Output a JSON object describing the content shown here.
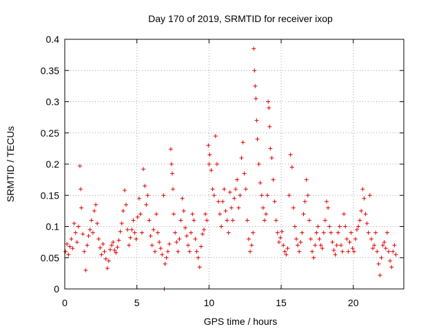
{
  "chart_data": {
    "type": "scatter",
    "title": "Day 170 of 2019, SRMTID for receiver ixop",
    "xlabel": "GPS time / hours",
    "ylabel": "SRMTID / TECUs",
    "xlim": [
      0,
      23.5
    ],
    "ylim": [
      0,
      0.4
    ],
    "grid": true,
    "marker": "+",
    "color": "#e00000",
    "x_ticks": [
      0,
      5,
      10,
      15,
      20
    ],
    "x_tick_labels": [
      "0",
      "5",
      "10",
      "15",
      "20"
    ],
    "y_ticks": [
      0,
      0.05,
      0.1,
      0.15,
      0.2,
      0.25,
      0.3,
      0.35,
      0.4
    ],
    "y_tick_labels": [
      "0",
      "0.05",
      "0.1",
      "0.15",
      "0.2",
      "0.25",
      "0.3",
      "0.35",
      "0.4"
    ],
    "series": [
      {
        "name": "SRMTID",
        "points": [
          [
            0.05,
            0.06
          ],
          [
            0.15,
            0.072
          ],
          [
            0.25,
            0.055
          ],
          [
            0.35,
            0.068
          ],
          [
            0.45,
            0.08
          ],
          [
            0.55,
            0.065
          ],
          [
            0.65,
            0.105
          ],
          [
            0.75,
            0.09
          ],
          [
            0.85,
            0.075
          ],
          [
            0.95,
            0.1
          ],
          [
            1.05,
            0.197
          ],
          [
            1.1,
            0.16
          ],
          [
            1.15,
            0.13
          ],
          [
            1.25,
            0.088
          ],
          [
            1.35,
            0.06
          ],
          [
            1.45,
            0.03
          ],
          [
            1.55,
            0.07
          ],
          [
            1.65,
            0.085
          ],
          [
            1.75,
            0.095
          ],
          [
            1.85,
            0.11
          ],
          [
            1.95,
            0.09
          ],
          [
            2.05,
            0.125
          ],
          [
            2.15,
            0.135
          ],
          [
            2.25,
            0.105
          ],
          [
            2.35,
            0.08
          ],
          [
            2.45,
            0.066
          ],
          [
            2.55,
            0.055
          ],
          [
            2.65,
            0.072
          ],
          [
            2.75,
            0.06
          ],
          [
            2.85,
            0.048
          ],
          [
            2.95,
            0.033
          ],
          [
            3.05,
            0.045
          ],
          [
            3.15,
            0.063
          ],
          [
            3.25,
            0.07
          ],
          [
            3.35,
            0.075
          ],
          [
            3.45,
            0.062
          ],
          [
            3.55,
            0.058
          ],
          [
            3.65,
            0.067
          ],
          [
            3.75,
            0.078
          ],
          [
            3.85,
            0.092
          ],
          [
            3.95,
            0.105
          ],
          [
            4.05,
            0.125
          ],
          [
            4.15,
            0.158
          ],
          [
            4.25,
            0.135
          ],
          [
            4.35,
            0.095
          ],
          [
            4.45,
            0.07
          ],
          [
            4.55,
            0.082
          ],
          [
            4.65,
            0.095
          ],
          [
            4.75,
            0.11
          ],
          [
            4.85,
            0.09
          ],
          [
            4.95,
            0.08
          ],
          [
            5.05,
            0.115
          ],
          [
            5.15,
            0.145
          ],
          [
            5.25,
            0.12
          ],
          [
            5.35,
            0.09
          ],
          [
            5.45,
            0.192
          ],
          [
            5.55,
            0.165
          ],
          [
            5.65,
            0.135
          ],
          [
            5.75,
            0.15
          ],
          [
            5.85,
            0.11
          ],
          [
            5.95,
            0.085
          ],
          [
            6.05,
            0.07
          ],
          [
            6.15,
            0.095
          ],
          [
            6.25,
            0.06
          ],
          [
            6.35,
            0.12
          ],
          [
            6.45,
            0.09
          ],
          [
            6.55,
            0.075
          ],
          [
            6.65,
            0.065
          ],
          [
            6.75,
            0.055
          ],
          [
            6.85,
            0.15
          ],
          [
            6.9,
            0.0
          ],
          [
            6.95,
            0.04
          ],
          [
            7.05,
            0.05
          ],
          [
            7.15,
            0.06
          ],
          [
            7.25,
            0.072
          ],
          [
            7.35,
            0.224
          ],
          [
            7.4,
            0.2
          ],
          [
            7.45,
            0.185
          ],
          [
            7.5,
            0.16
          ],
          [
            7.55,
            0.12
          ],
          [
            7.65,
            0.09
          ],
          [
            7.75,
            0.075
          ],
          [
            7.85,
            0.06
          ],
          [
            7.95,
            0.08
          ],
          [
            8.05,
            0.11
          ],
          [
            8.15,
            0.145
          ],
          [
            8.25,
            0.125
          ],
          [
            8.35,
            0.098
          ],
          [
            8.45,
            0.085
          ],
          [
            8.55,
            0.07
          ],
          [
            8.65,
            0.06
          ],
          [
            8.75,
            0.09
          ],
          [
            8.85,
            0.12
          ],
          [
            8.95,
            0.11
          ],
          [
            9.05,
            0.08
          ],
          [
            9.15,
            0.06
          ],
          [
            9.25,
            0.05
          ],
          [
            9.35,
            0.035
          ],
          [
            9.45,
            0.068
          ],
          [
            9.55,
            0.088
          ],
          [
            9.65,
            0.095
          ],
          [
            9.75,
            0.12
          ],
          [
            9.85,
            0.11
          ],
          [
            9.95,
            0.23
          ],
          [
            10.0,
            0.2
          ],
          [
            10.05,
            0.215
          ],
          [
            10.15,
            0.19
          ],
          [
            10.25,
            0.16
          ],
          [
            10.35,
            0.15
          ],
          [
            10.45,
            0.245
          ],
          [
            10.55,
            0.2
          ],
          [
            10.65,
            0.14
          ],
          [
            10.75,
            0.12
          ],
          [
            10.85,
            0.1
          ],
          [
            10.95,
            0.14
          ],
          [
            11.05,
            0.16
          ],
          [
            11.15,
            0.125
          ],
          [
            11.25,
            0.11
          ],
          [
            11.35,
            0.09
          ],
          [
            11.45,
            0.155
          ],
          [
            11.55,
            0.13
          ],
          [
            11.65,
            0.11
          ],
          [
            11.75,
            0.145
          ],
          [
            11.85,
            0.16
          ],
          [
            11.95,
            0.175
          ],
          [
            12.05,
            0.13
          ],
          [
            12.15,
            0.15
          ],
          [
            12.25,
            0.21
          ],
          [
            12.35,
            0.235
          ],
          [
            12.45,
            0.185
          ],
          [
            12.55,
            0.16
          ],
          [
            12.65,
            0.11
          ],
          [
            12.75,
            0.08
          ],
          [
            12.85,
            0.06
          ],
          [
            12.95,
            0.07
          ],
          [
            13.05,
            0.09
          ],
          [
            13.1,
            0.385
          ],
          [
            13.15,
            0.35
          ],
          [
            13.2,
            0.325
          ],
          [
            13.25,
            0.305
          ],
          [
            13.3,
            0.27
          ],
          [
            13.35,
            0.24
          ],
          [
            13.45,
            0.2
          ],
          [
            13.55,
            0.17
          ],
          [
            13.65,
            0.15
          ],
          [
            13.75,
            0.13
          ],
          [
            13.85,
            0.11
          ],
          [
            13.95,
            0.12
          ],
          [
            14.05,
            0.15
          ],
          [
            14.1,
            0.3
          ],
          [
            14.15,
            0.29
          ],
          [
            14.2,
            0.26
          ],
          [
            14.25,
            0.225
          ],
          [
            14.35,
            0.21
          ],
          [
            14.45,
            0.175
          ],
          [
            14.55,
            0.14
          ],
          [
            14.65,
            0.11
          ],
          [
            14.75,
            0.09
          ],
          [
            14.85,
            0.075
          ],
          [
            14.95,
            0.082
          ],
          [
            15.05,
            0.092
          ],
          [
            15.15,
            0.07
          ],
          [
            15.25,
            0.06
          ],
          [
            15.35,
            0.055
          ],
          [
            15.45,
            0.065
          ],
          [
            15.55,
            0.15
          ],
          [
            15.65,
            0.215
          ],
          [
            15.75,
            0.195
          ],
          [
            15.85,
            0.13
          ],
          [
            15.95,
            0.1
          ],
          [
            16.05,
            0.08
          ],
          [
            16.15,
            0.07
          ],
          [
            16.25,
            0.06
          ],
          [
            16.35,
            0.075
          ],
          [
            16.45,
            0.09
          ],
          [
            16.55,
            0.12
          ],
          [
            16.65,
            0.14
          ],
          [
            16.75,
            0.175
          ],
          [
            16.85,
            0.15
          ],
          [
            16.95,
            0.11
          ],
          [
            17.05,
            0.08
          ],
          [
            17.15,
            0.06
          ],
          [
            17.25,
            0.05
          ],
          [
            17.35,
            0.07
          ],
          [
            17.45,
            0.09
          ],
          [
            17.55,
            0.1
          ],
          [
            17.65,
            0.08
          ],
          [
            17.75,
            0.07
          ],
          [
            17.85,
            0.065
          ],
          [
            17.95,
            0.09
          ],
          [
            18.05,
            0.11
          ],
          [
            18.15,
            0.14
          ],
          [
            18.25,
            0.13
          ],
          [
            18.35,
            0.1
          ],
          [
            18.45,
            0.09
          ],
          [
            18.55,
            0.075
          ],
          [
            18.65,
            0.062
          ],
          [
            18.75,
            0.055
          ],
          [
            18.85,
            0.07
          ],
          [
            18.95,
            0.09
          ],
          [
            19.05,
            0.1
          ],
          [
            19.15,
            0.07
          ],
          [
            19.25,
            0.06
          ],
          [
            19.35,
            0.12
          ],
          [
            19.45,
            0.1
          ],
          [
            19.55,
            0.08
          ],
          [
            19.65,
            0.06
          ],
          [
            19.75,
            0.075
          ],
          [
            19.85,
            0.09
          ],
          [
            19.95,
            0.065
          ],
          [
            20.05,
            0.06
          ],
          [
            20.15,
            0.08
          ],
          [
            20.25,
            0.095
          ],
          [
            20.35,
            0.1
          ],
          [
            20.45,
            0.11
          ],
          [
            20.55,
            0.125
          ],
          [
            20.65,
            0.16
          ],
          [
            20.75,
            0.145
          ],
          [
            20.85,
            0.12
          ],
          [
            20.95,
            0.105
          ],
          [
            21.05,
            0.09
          ],
          [
            21.15,
            0.15
          ],
          [
            21.25,
            0.08
          ],
          [
            21.35,
            0.065
          ],
          [
            21.45,
            0.07
          ],
          [
            21.55,
            0.09
          ],
          [
            21.65,
            0.06
          ],
          [
            21.75,
            0.04
          ],
          [
            21.85,
            0.022
          ],
          [
            21.95,
            0.05
          ],
          [
            22.05,
            0.07
          ],
          [
            22.15,
            0.075
          ],
          [
            22.25,
            0.065
          ],
          [
            22.35,
            0.09
          ],
          [
            22.45,
            0.06
          ],
          [
            22.55,
            0.045
          ],
          [
            22.65,
            0.035
          ],
          [
            22.75,
            0.06
          ],
          [
            22.85,
            0.07
          ],
          [
            22.95,
            0.055
          ]
        ]
      }
    ]
  }
}
